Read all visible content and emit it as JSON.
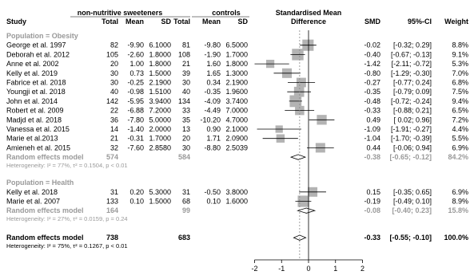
{
  "chart_data": {
    "type": "forest",
    "headers": {
      "group_exp": "non-nutritive sweeteners",
      "group_ctrl": "controls",
      "effect": "Standardised Mean",
      "effect2": "Difference",
      "study": "Study",
      "total": "Total",
      "mean": "Mean",
      "sd": "SD",
      "smd": "SMD",
      "ci": "95%-CI",
      "weight": "Weight"
    },
    "axis": {
      "xlim": [
        -2,
        2
      ],
      "ticks": [
        -2,
        -1,
        0,
        1,
        2
      ]
    },
    "subgroups": [
      {
        "label": "Population = Obesity",
        "studies": [
          {
            "study": "George et al. 1997",
            "n1": "82",
            "m1": "-9.90",
            "sd1": "6.1000",
            "n2": "81",
            "m2": "-9.80",
            "sd2": "6.5000",
            "smd": -0.02,
            "lo": -0.32,
            "hi": 0.29,
            "smd_text": "-0.02",
            "ci_text": "[-0.32; 0.29]",
            "weight": "8.8%"
          },
          {
            "study": "Deborah et al. 2012",
            "n1": "105",
            "m1": "-2.60",
            "sd1": "1.8000",
            "n2": "108",
            "m2": "-1.90",
            "sd2": "1.7000",
            "smd": -0.4,
            "lo": -0.67,
            "hi": -0.13,
            "smd_text": "-0.40",
            "ci_text": "[-0.67; -0.13]",
            "weight": "9.1%"
          },
          {
            "study": "Anne et al. 2002",
            "n1": "20",
            "m1": "1.00",
            "sd1": "1.8000",
            "n2": "21",
            "m2": "1.60",
            "sd2": "1.8000",
            "smd": -1.42,
            "lo": -2.11,
            "hi": -0.72,
            "smd_text": "-1.42",
            "ci_text": "[-2.11; -0.72]",
            "weight": "5.3%"
          },
          {
            "study": "Kelly et al. 2019",
            "n1": "30",
            "m1": "0.73",
            "sd1": "1.5000",
            "n2": "39",
            "m2": "1.65",
            "sd2": "1.3000",
            "smd": -0.8,
            "lo": -1.29,
            "hi": -0.3,
            "smd_text": "-0.80",
            "ci_text": "[-1.29; -0.30]",
            "weight": "7.0%"
          },
          {
            "study": "Fabrice et al. 2018",
            "n1": "30",
            "m1": "-0.25",
            "sd1": "2.1900",
            "n2": "30",
            "m2": "0.34",
            "sd2": "2.1900",
            "smd": -0.27,
            "lo": -0.77,
            "hi": 0.24,
            "smd_text": "-0.27",
            "ci_text": "[-0.77; 0.24]",
            "weight": "6.8%"
          },
          {
            "study": "Youngji et al. 2018",
            "n1": "40",
            "m1": "-0.98",
            "sd1": "1.5100",
            "n2": "40",
            "m2": "-0.35",
            "sd2": "1.9600",
            "smd": -0.35,
            "lo": -0.79,
            "hi": 0.09,
            "smd_text": "-0.35",
            "ci_text": "[-0.79; 0.09]",
            "weight": "7.5%"
          },
          {
            "study": "John et al. 2014",
            "n1": "142",
            "m1": "-5.95",
            "sd1": "3.9400",
            "n2": "134",
            "m2": "-4.09",
            "sd2": "3.7400",
            "smd": -0.48,
            "lo": -0.72,
            "hi": -0.24,
            "smd_text": "-0.48",
            "ci_text": "[-0.72; -0.24]",
            "weight": "9.4%"
          },
          {
            "study": "Robert et al. 2009",
            "n1": "22",
            "m1": "-6.88",
            "sd1": "7.2000",
            "n2": "33",
            "m2": "-4.49",
            "sd2": "7.0000",
            "smd": -0.33,
            "lo": -0.88,
            "hi": 0.21,
            "smd_text": "-0.33",
            "ci_text": "[-0.88; 0.21]",
            "weight": "6.5%"
          },
          {
            "study": "Madjd et al. 2018",
            "n1": "36",
            "m1": "-7.80",
            "sd1": "5.0000",
            "n2": "35",
            "m2": "-10.20",
            "sd2": "4.7000",
            "smd": 0.49,
            "lo": 0.02,
            "hi": 0.96,
            "smd_text": "0.49",
            "ci_text": "[ 0.02; 0.96]",
            "weight": "7.2%"
          },
          {
            "study": "Vanessa et al. 2015",
            "n1": "14",
            "m1": "-1.40",
            "sd1": "2.0000",
            "n2": "13",
            "m2": "0.90",
            "sd2": "2.1000",
            "smd": -1.09,
            "lo": -1.91,
            "hi": -0.27,
            "smd_text": "-1.09",
            "ci_text": "[-1.91; -0.27]",
            "weight": "4.4%"
          },
          {
            "study": "Marie et al.2013",
            "n1": "21",
            "m1": "-0.31",
            "sd1": "1.7000",
            "n2": "20",
            "m2": "1.71",
            "sd2": "2.0900",
            "smd": -1.04,
            "lo": -1.7,
            "hi": -0.39,
            "smd_text": "-1.04",
            "ci_text": "[-1.70; -0.39]",
            "weight": "5.5%"
          },
          {
            "study": "Amieneh et al. 2015",
            "n1": "32",
            "m1": "-7.60",
            "sd1": "2.8580",
            "n2": "30",
            "m2": "-8.80",
            "sd2": "2.5039",
            "smd": 0.44,
            "lo": -0.06,
            "hi": 0.94,
            "smd_text": "0.44",
            "ci_text": "[-0.06; 0.94]",
            "weight": "6.9%"
          }
        ],
        "pooled": {
          "label": "Random effects model",
          "n1": "574",
          "n2": "584",
          "smd": -0.38,
          "lo": -0.65,
          "hi": -0.12,
          "smd_text": "-0.38",
          "ci_text": "[-0.65; -0.12]",
          "weight": "84.2%"
        },
        "het": "Heterogeneity: I² = 77%, τ² = 0.1504, p < 0.01"
      },
      {
        "label": "Population = Health",
        "studies": [
          {
            "study": "Kelly et al. 2018",
            "n1": "31",
            "m1": "0.20",
            "sd1": "5.3000",
            "n2": "31",
            "m2": "-0.50",
            "sd2": "3.8000",
            "smd": 0.15,
            "lo": -0.35,
            "hi": 0.65,
            "smd_text": "0.15",
            "ci_text": "[-0.35; 0.65]",
            "weight": "6.9%"
          },
          {
            "study": "Marie et al. 2007",
            "n1": "133",
            "m1": "0.10",
            "sd1": "1.5000",
            "n2": "68",
            "m2": "0.10",
            "sd2": "1.6000",
            "smd": -0.19,
            "lo": -0.49,
            "hi": 0.1,
            "smd_text": "-0.19",
            "ci_text": "[-0.49; 0.10]",
            "weight": "8.9%"
          }
        ],
        "pooled": {
          "label": "Random effects model",
          "n1": "164",
          "n2": "99",
          "smd": -0.08,
          "lo": -0.4,
          "hi": 0.23,
          "smd_text": "-0.08",
          "ci_text": "[-0.40; 0.23]",
          "weight": "15.8%"
        },
        "het": "Heterogeneity: I² = 27%, τ² = 0.0159, p = 0.24"
      }
    ],
    "overall": {
      "label": "Random effects model",
      "n1": "738",
      "n2": "683",
      "smd": -0.33,
      "lo": -0.55,
      "hi": -0.1,
      "smd_text": "-0.33",
      "ci_text": "[-0.55; -0.10]",
      "weight": "100.0%"
    },
    "overall_het": "Heterogeneity: I² = 75%, τ² = 0.1267, p < 0.01",
    "colors": {
      "text": "#000000",
      "subgroup": "#999999",
      "box": "#b3b3b3",
      "diamond_fill": "#ffffff",
      "line": "#000000",
      "dash": "#888888"
    }
  }
}
